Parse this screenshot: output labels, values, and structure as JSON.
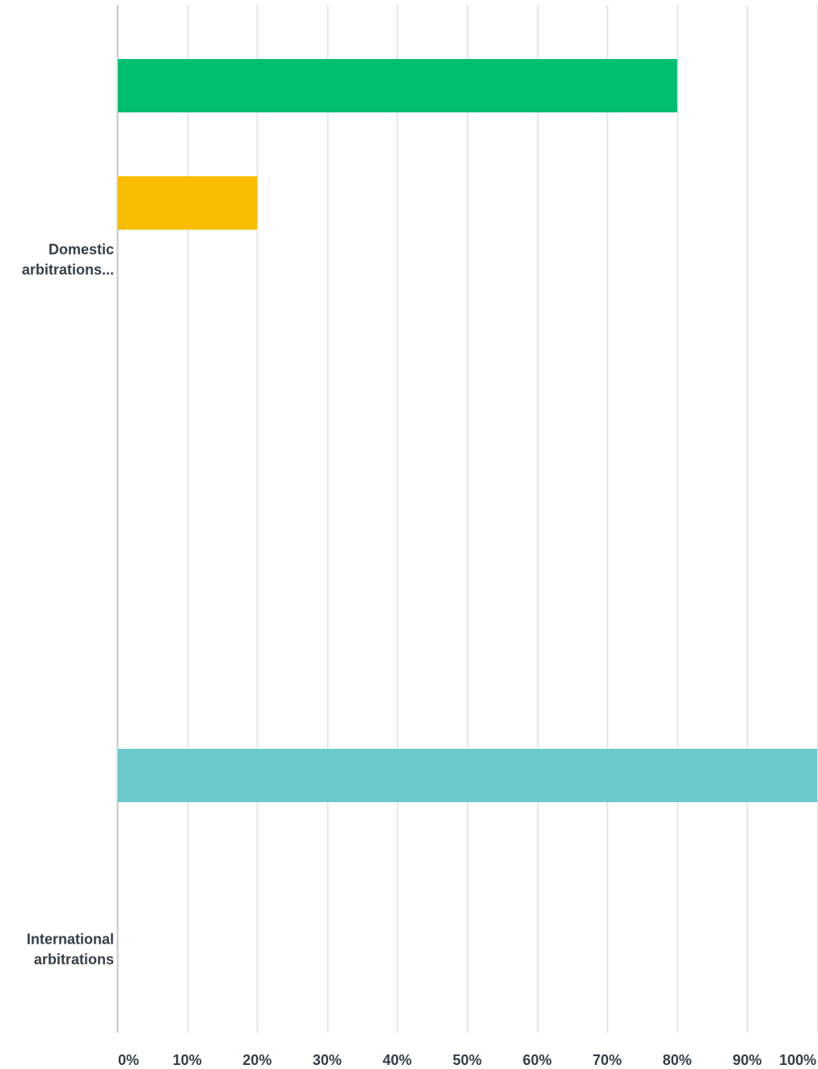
{
  "chart_data": {
    "type": "bar",
    "orientation": "horizontal",
    "title": "",
    "xlabel": "",
    "ylabel": "",
    "xlim": [
      0,
      100
    ],
    "grid": true,
    "x_ticks": [
      "0%",
      "10%",
      "20%",
      "30%",
      "40%",
      "50%",
      "60%",
      "70%",
      "80%",
      "90%",
      "100%"
    ],
    "categories": [
      {
        "label_lines": [
          "Domestic",
          "arbitrations..."
        ],
        "bars": [
          {
            "value": 80,
            "color": "#00bf6f"
          },
          {
            "value": 20,
            "color": "#f9be00"
          }
        ]
      },
      {
        "label_lines": [
          "International",
          "arbitrations"
        ],
        "bars": [
          {
            "value": 100,
            "color": "#6bc8cd"
          }
        ]
      }
    ],
    "colors": {
      "grid": "#e5e5e5",
      "axis": "#c7c7c7",
      "text": "#333e48"
    }
  }
}
